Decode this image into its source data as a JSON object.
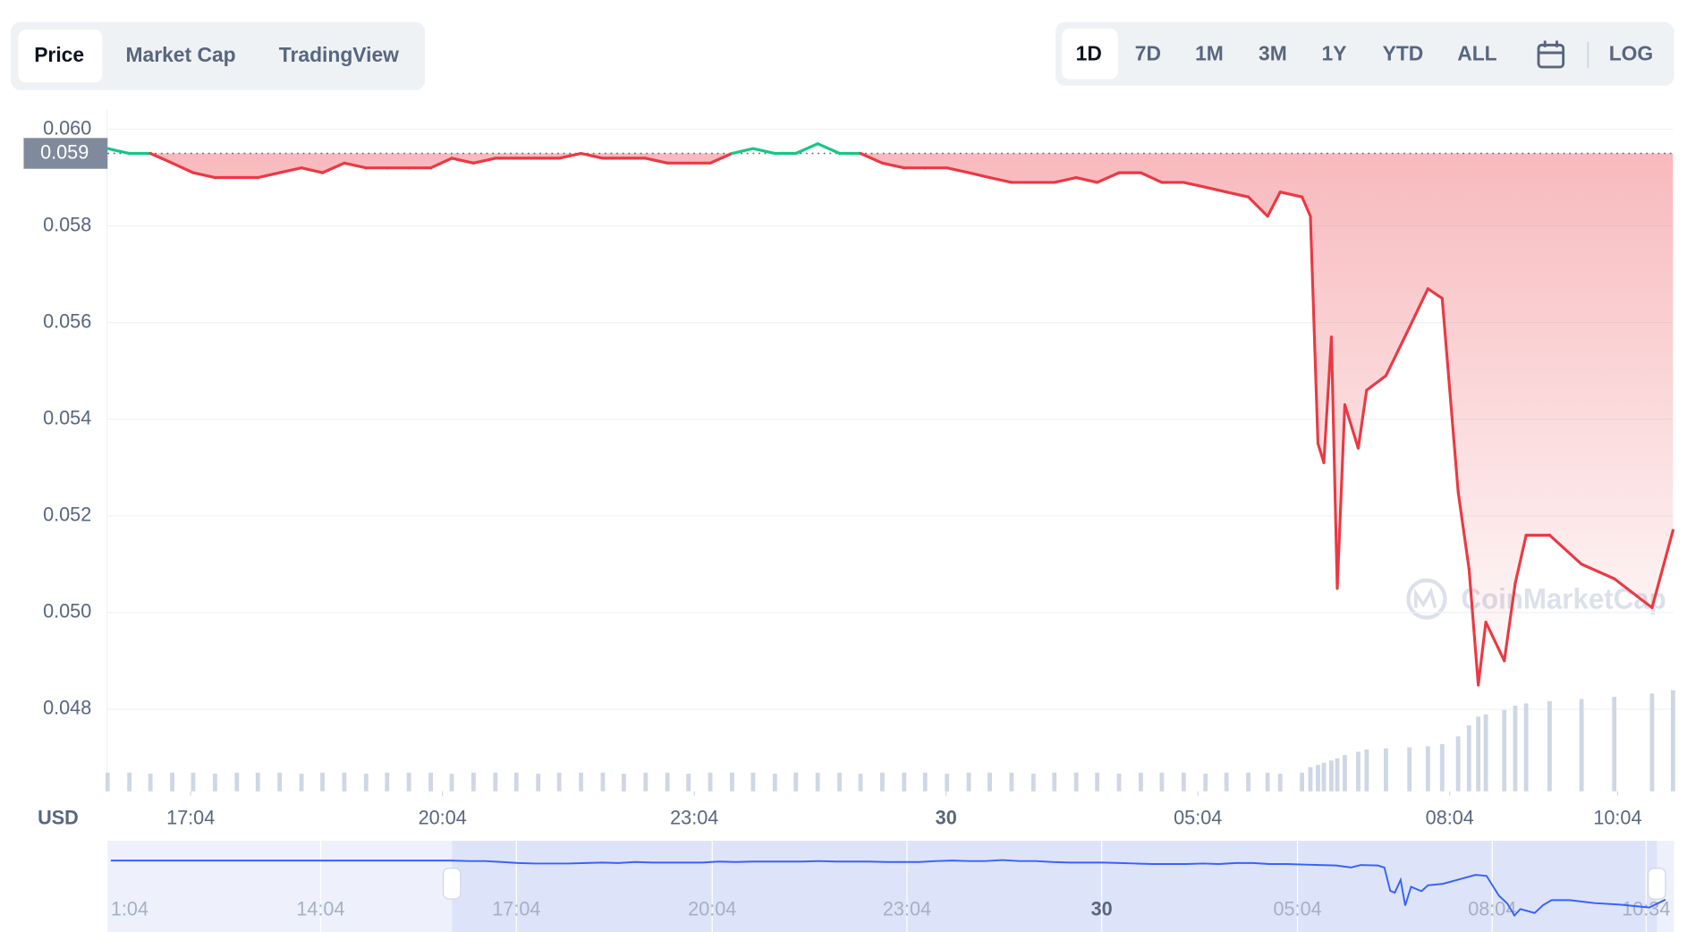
{
  "tabs": [
    "Price",
    "Market Cap",
    "TradingView"
  ],
  "ranges": [
    "1D",
    "7D",
    "1M",
    "3M",
    "1Y",
    "YTD",
    "ALL"
  ],
  "log_button": "LOG",
  "watermark": "CoinMarketCap",
  "chart_data": {
    "type": "line",
    "y_unit": "USD",
    "xlim": [
      16.08,
      34.73
    ],
    "ylim": [
      0.0463,
      0.0604
    ],
    "xticks": [
      {
        "value": 17.07,
        "label": "17:04"
      },
      {
        "value": 20.07,
        "label": "20:04"
      },
      {
        "value": 23.07,
        "label": "23:04"
      },
      {
        "value": 26.07,
        "label": "30"
      },
      {
        "value": 29.07,
        "label": "05:04"
      },
      {
        "value": 32.07,
        "label": "08:04"
      },
      {
        "value": 34.07,
        "label": "10:04"
      }
    ],
    "yticks": [
      0.048,
      {
        "value": 0.05,
        "label": "0.050"
      },
      0.052,
      0.054,
      0.056,
      0.058,
      {
        "value": 0.06,
        "label": "0.060"
      }
    ],
    "grid": true,
    "reference_price": {
      "value": 0.0595,
      "label": "0.059"
    },
    "up_color": "#16c784",
    "down_color": "#ea3943",
    "x": [
      16.08,
      16.34,
      16.59,
      16.85,
      17.1,
      17.36,
      17.62,
      17.87,
      18.13,
      18.39,
      18.64,
      18.9,
      19.16,
      19.41,
      19.67,
      19.93,
      20.18,
      20.44,
      20.7,
      20.95,
      21.21,
      21.46,
      21.72,
      21.98,
      22.23,
      22.49,
      22.75,
      23.0,
      23.26,
      23.52,
      23.77,
      24.03,
      24.28,
      24.54,
      24.8,
      25.05,
      25.31,
      25.57,
      25.82,
      26.08,
      26.34,
      26.59,
      26.85,
      27.11,
      27.36,
      27.62,
      27.87,
      28.13,
      28.39,
      28.64,
      28.9,
      29.16,
      29.41,
      29.67,
      29.9,
      30.05,
      30.31,
      30.41,
      30.5,
      30.57,
      30.66,
      30.73,
      30.82,
      30.98,
      31.08,
      31.31,
      31.59,
      31.81,
      31.98,
      32.17,
      32.3,
      32.41,
      32.5,
      32.72,
      32.85,
      32.98,
      33.26,
      33.64,
      34.03,
      34.48,
      34.73
    ],
    "values": [
      0.0596,
      0.0595,
      0.0595,
      0.0593,
      0.0591,
      0.059,
      0.059,
      0.059,
      0.0591,
      0.0592,
      0.0591,
      0.0593,
      0.0592,
      0.0592,
      0.0592,
      0.0592,
      0.0594,
      0.0593,
      0.0594,
      0.0594,
      0.0594,
      0.0594,
      0.0595,
      0.0594,
      0.0594,
      0.0594,
      0.0593,
      0.0593,
      0.0593,
      0.0595,
      0.0596,
      0.0595,
      0.0595,
      0.0597,
      0.0595,
      0.0595,
      0.0593,
      0.0592,
      0.0592,
      0.0592,
      0.0591,
      0.059,
      0.0589,
      0.0589,
      0.0589,
      0.059,
      0.0589,
      0.0591,
      0.0591,
      0.0589,
      0.0589,
      0.0588,
      0.0587,
      0.0586,
      0.0582,
      0.0587,
      0.0586,
      0.0582,
      0.0535,
      0.0531,
      0.0557,
      0.0505,
      0.0543,
      0.0534,
      0.0546,
      0.0549,
      0.0559,
      0.0567,
      0.0565,
      0.0525,
      0.0509,
      0.0485,
      0.0498,
      0.049,
      0.0506,
      0.0516,
      0.0516,
      0.051,
      0.0507,
      0.0501,
      0.0517
    ],
    "volume": [
      17,
      17,
      16,
      17,
      17,
      16,
      17,
      17,
      17,
      16,
      17,
      17,
      16,
      17,
      17,
      17,
      16,
      17,
      17,
      17,
      16,
      17,
      17,
      17,
      16,
      17,
      17,
      16,
      17,
      17,
      17,
      16,
      17,
      17,
      17,
      16,
      17,
      17,
      17,
      16,
      17,
      17,
      17,
      16,
      17,
      17,
      17,
      16,
      17,
      17,
      17,
      16,
      17,
      17,
      17,
      16,
      17,
      22,
      24,
      26,
      28,
      30,
      33,
      36,
      38,
      39,
      40,
      41,
      43,
      50,
      60,
      68,
      70,
      74,
      78,
      80,
      82,
      84,
      86,
      89,
      92
    ],
    "volume_color": "#cfd6e4"
  },
  "navigator": {
    "ticks": [
      "1:04",
      "14:04",
      "17:04",
      "20:04",
      "23:04",
      "30",
      "05:04",
      "08:04",
      "10:34"
    ],
    "color": "#3861fb"
  }
}
